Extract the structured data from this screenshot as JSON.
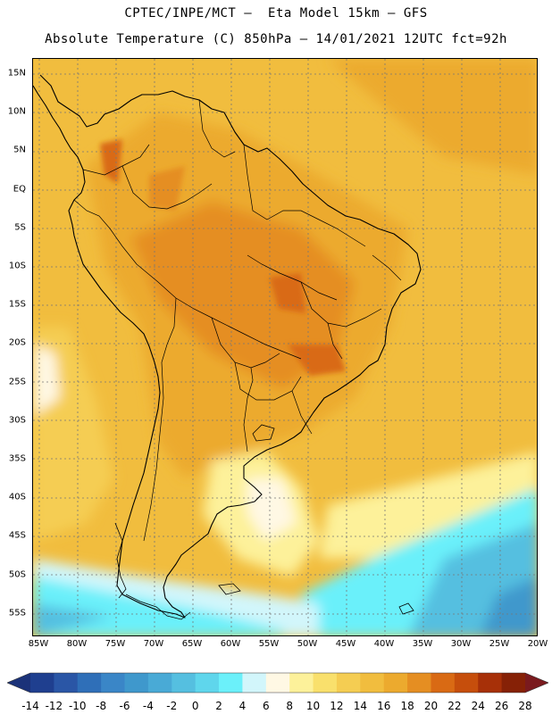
{
  "header": {
    "line1": "CPTEC/INPE/MCT –  Eta Model 15km – GFS",
    "line2": "Absolute Temperature (C) 850hPa – 14/01/2021 12UTC fct=92h"
  },
  "map": {
    "lat_labels": [
      "15N",
      "10N",
      "5N",
      "EQ",
      "5S",
      "10S",
      "15S",
      "20S",
      "25S",
      "30S",
      "35S",
      "40S",
      "45S",
      "50S",
      "55S"
    ],
    "lon_labels": [
      "85W",
      "80W",
      "75W",
      "70W",
      "65W",
      "60W",
      "55W",
      "50W",
      "45W",
      "40W",
      "35W",
      "30W",
      "25W",
      "20W"
    ],
    "gridline_color": "#777777",
    "coastline_color": "#000000"
  },
  "colorbar": {
    "labels": [
      "-14",
      "-12",
      "-10",
      "-8",
      "-6",
      "-4",
      "-2",
      "0",
      "2",
      "4",
      "6",
      "8",
      "10",
      "12",
      "14",
      "16",
      "18",
      "20",
      "22",
      "24",
      "26",
      "28"
    ],
    "colors": [
      "#1f3f8f",
      "#2a56a6",
      "#2f6fb8",
      "#3a86c7",
      "#3f98cc",
      "#49aad6",
      "#55bfe0",
      "#5fd6ec",
      "#6bf0fa",
      "#d2f6fb",
      "#fff8e4",
      "#fdf19a",
      "#f9e06c",
      "#f5cd52",
      "#f1bd3e",
      "#ecaa2e",
      "#e58e22",
      "#d96a14",
      "#c64e0c",
      "#a73008",
      "#862106"
    ],
    "under_color": "#1b3279",
    "over_color": "#7a1a1e"
  }
}
